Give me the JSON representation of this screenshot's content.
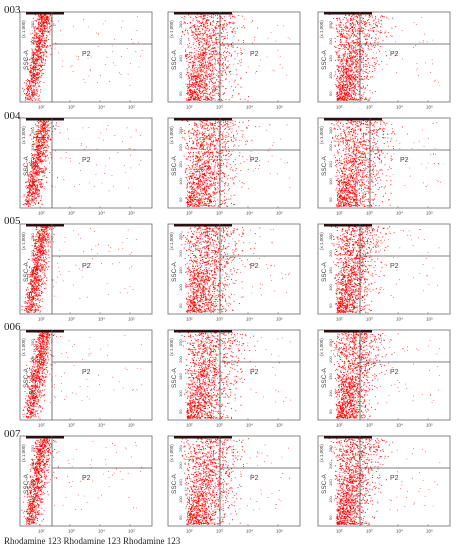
{
  "rows": [
    {
      "label": "003"
    },
    {
      "label": "004"
    },
    {
      "label": "005"
    },
    {
      "label": "006"
    },
    {
      "label": "007"
    }
  ],
  "footer_labels": [
    "Rhodamine 123",
    "Rhodamine 123",
    "Rhodamine 123"
  ],
  "colors": {
    "dots": "#ff0000",
    "gate": "#555555",
    "frame": "#6a6a6a"
  },
  "chart_data": {
    "type": "scatter",
    "ylabel": "SSC-A",
    "y_multiplier": "(x 1,000)",
    "gate_label": "P2",
    "yticks": [
      "50",
      "100",
      "150",
      "200",
      "250"
    ],
    "xticks": [
      "10²",
      "10³",
      "10⁴",
      "10⁵"
    ],
    "x_scale": "log",
    "panels": [
      {
        "row": "003",
        "col": 1,
        "shape": "narrow"
      },
      {
        "row": "003",
        "col": 2,
        "shape": "wide"
      },
      {
        "row": "003",
        "col": 3,
        "shape": "medium"
      },
      {
        "row": "004",
        "col": 1,
        "shape": "narrow"
      },
      {
        "row": "004",
        "col": 2,
        "shape": "wide"
      },
      {
        "row": "004",
        "col": 3,
        "shape": "wide"
      },
      {
        "row": "005",
        "col": 1,
        "shape": "narrow"
      },
      {
        "row": "005",
        "col": 2,
        "shape": "wide"
      },
      {
        "row": "005",
        "col": 3,
        "shape": "medium"
      },
      {
        "row": "006",
        "col": 1,
        "shape": "narrow"
      },
      {
        "row": "006",
        "col": 2,
        "shape": "wide"
      },
      {
        "row": "006",
        "col": 3,
        "shape": "medium"
      },
      {
        "row": "007",
        "col": 1,
        "shape": "narrow"
      },
      {
        "row": "007",
        "col": 2,
        "shape": "wide"
      },
      {
        "row": "007",
        "col": 3,
        "shape": "medium"
      }
    ]
  }
}
